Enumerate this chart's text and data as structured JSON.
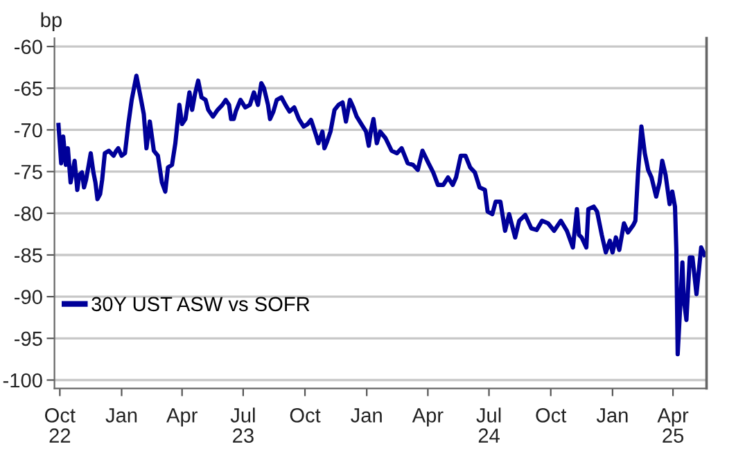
{
  "chart_data": {
    "type": "line",
    "ylabel": "bp",
    "xlim": [
      "2022-09-23",
      "2025-05-21"
    ],
    "xticks": [
      {
        "value": "2022-10-01",
        "label": "Oct\n22"
      },
      {
        "value": "2023-01-01",
        "label": "Jan"
      },
      {
        "value": "2023-04-01",
        "label": "Apr"
      },
      {
        "value": "2023-07-01",
        "label": "Jul\n23"
      },
      {
        "value": "2023-10-01",
        "label": "Oct"
      },
      {
        "value": "2024-01-01",
        "label": "Jan"
      },
      {
        "value": "2024-04-01",
        "label": "Apr"
      },
      {
        "value": "2024-07-01",
        "label": "Jul\n24"
      },
      {
        "value": "2024-10-01",
        "label": "Oct"
      },
      {
        "value": "2025-01-01",
        "label": "Jan"
      },
      {
        "value": "2025-04-01",
        "label": "Apr\n25"
      }
    ],
    "ylim": [
      -101,
      -59
    ],
    "yticks": [
      -60,
      -65,
      -70,
      -75,
      -80,
      -85,
      -90,
      -95,
      -100
    ],
    "grid": "y",
    "legend": "bottom left",
    "line_style": "solid",
    "marker": "none",
    "series": [
      {
        "name": "30Y UST ASW vs SOFR",
        "color": "#000099",
        "x": [
          "2022-09-29",
          "2022-10-03",
          "2022-10-06",
          "2022-10-10",
          "2022-10-13",
          "2022-10-17",
          "2022-10-20",
          "2022-10-23",
          "2022-10-27",
          "2022-10-30",
          "2022-11-03",
          "2022-11-06",
          "2022-11-09",
          "2022-11-13",
          "2022-11-16",
          "2022-11-20",
          "2022-11-23",
          "2022-11-26",
          "2022-11-30",
          "2022-12-03",
          "2022-12-07",
          "2022-12-13",
          "2022-12-20",
          "2022-12-24",
          "2022-12-27",
          "2023-01-01",
          "2023-01-06",
          "2023-01-11",
          "2023-01-16",
          "2023-01-23",
          "2023-01-30",
          "2023-02-03",
          "2023-02-07",
          "2023-02-12",
          "2023-02-18",
          "2023-02-24",
          "2023-03-02",
          "2023-03-07",
          "2023-03-11",
          "2023-03-17",
          "2023-03-22",
          "2023-03-28",
          "2023-04-01",
          "2023-04-06",
          "2023-04-12",
          "2023-04-16",
          "2023-04-20",
          "2023-04-25",
          "2023-04-30",
          "2023-05-06",
          "2023-05-10",
          "2023-05-17",
          "2023-05-24",
          "2023-05-31",
          "2023-06-05",
          "2023-06-10",
          "2023-06-13",
          "2023-06-17",
          "2023-06-20",
          "2023-06-27",
          "2023-07-04",
          "2023-07-11",
          "2023-07-17",
          "2023-07-23",
          "2023-07-28",
          "2023-08-01",
          "2023-08-07",
          "2023-08-10",
          "2023-08-15",
          "2023-08-20",
          "2023-08-27",
          "2023-09-02",
          "2023-09-08",
          "2023-09-15",
          "2023-09-22",
          "2023-09-29",
          "2023-10-05",
          "2023-10-10",
          "2023-10-17",
          "2023-10-21",
          "2023-10-27",
          "2023-10-30",
          "2023-11-03",
          "2023-11-08",
          "2023-11-14",
          "2023-11-20",
          "2023-11-26",
          "2023-12-01",
          "2023-12-07",
          "2023-12-12",
          "2023-12-17",
          "2023-12-24",
          "2023-12-31",
          "2024-01-04",
          "2024-01-07",
          "2024-01-11",
          "2024-01-16",
          "2024-01-21",
          "2024-01-29",
          "2024-02-07",
          "2024-02-15",
          "2024-02-22",
          "2024-03-02",
          "2024-03-10",
          "2024-03-17",
          "2024-03-24",
          "2024-04-02",
          "2024-04-09",
          "2024-04-16",
          "2024-04-24",
          "2024-05-01",
          "2024-05-08",
          "2024-05-13",
          "2024-05-20",
          "2024-05-27",
          "2024-06-03",
          "2024-06-10",
          "2024-06-17",
          "2024-06-25",
          "2024-06-29",
          "2024-07-06",
          "2024-07-11",
          "2024-07-18",
          "2024-07-25",
          "2024-07-31",
          "2024-08-09",
          "2024-08-15",
          "2024-08-24",
          "2024-09-02",
          "2024-09-10",
          "2024-09-18",
          "2024-09-27",
          "2024-10-06",
          "2024-10-16",
          "2024-10-25",
          "2024-11-03",
          "2024-11-09",
          "2024-11-12",
          "2024-11-16",
          "2024-11-23",
          "2024-11-26",
          "2024-12-04",
          "2024-12-09",
          "2024-12-16",
          "2024-12-22",
          "2024-12-28",
          "2025-01-01",
          "2025-01-06",
          "2025-01-11",
          "2025-01-18",
          "2025-01-24",
          "2025-02-01",
          "2025-02-04",
          "2025-02-08",
          "2025-02-13",
          "2025-02-18",
          "2025-02-23",
          "2025-02-28",
          "2025-03-07",
          "2025-03-12",
          "2025-03-16",
          "2025-03-21",
          "2025-03-27",
          "2025-03-31",
          "2025-04-04",
          "2025-04-06",
          "2025-04-08",
          "2025-04-12",
          "2025-04-15",
          "2025-04-17",
          "2025-04-21",
          "2025-04-26",
          "2025-04-30",
          "2025-05-06",
          "2025-05-13",
          "2025-05-18"
        ],
        "values": [
          -69.4,
          -74,
          -70.8,
          -74.2,
          -72.2,
          -76.3,
          -75.1,
          -73.7,
          -77.2,
          -75.4,
          -75.1,
          -76.9,
          -76,
          -74.2,
          -72.8,
          -75.1,
          -76.3,
          -78.3,
          -77.7,
          -76,
          -72.8,
          -72.5,
          -73.1,
          -72.5,
          -72.2,
          -73.1,
          -72.8,
          -69.3,
          -66.4,
          -63.5,
          -66.4,
          -68.1,
          -72.2,
          -69,
          -72.5,
          -73.1,
          -76.3,
          -77.4,
          -74.5,
          -74.2,
          -71.6,
          -67,
          -69.3,
          -68.7,
          -65.5,
          -67.6,
          -65.8,
          -64.1,
          -66.1,
          -66.4,
          -67.6,
          -68.4,
          -67.6,
          -67,
          -66.4,
          -67,
          -68.7,
          -68.7,
          -67.8,
          -66.4,
          -67.3,
          -67,
          -65.5,
          -67,
          -64.4,
          -65,
          -67,
          -68.7,
          -67.8,
          -66.4,
          -66.1,
          -67,
          -67.8,
          -67.3,
          -68.7,
          -69.6,
          -69.3,
          -68.8,
          -70.5,
          -71.6,
          -70.2,
          -72.2,
          -71.4,
          -70.2,
          -67.6,
          -67,
          -66.7,
          -69,
          -66.4,
          -67.3,
          -68.4,
          -69.3,
          -70.2,
          -71.9,
          -70.2,
          -68.7,
          -71.6,
          -70.2,
          -71,
          -72.5,
          -72.8,
          -72.2,
          -74,
          -74.2,
          -74.8,
          -72.5,
          -74,
          -75.1,
          -76.6,
          -76.6,
          -75.7,
          -76.6,
          -75.7,
          -73.1,
          -73.1,
          -74.5,
          -75.1,
          -76.9,
          -77.2,
          -79.8,
          -80.1,
          -78.6,
          -78.6,
          -82.1,
          -80.1,
          -82.9,
          -80.9,
          -80.2,
          -81.8,
          -82,
          -80.9,
          -81.2,
          -82.1,
          -80.9,
          -82.1,
          -84.1,
          -79.5,
          -82.6,
          -82.9,
          -84.1,
          -79.5,
          -79.2,
          -79.8,
          -82.6,
          -84.7,
          -83.3,
          -84.7,
          -82.9,
          -84.4,
          -81.2,
          -82.3,
          -81.4,
          -80.9,
          -75.1,
          -69.6,
          -72.8,
          -74.8,
          -75.7,
          -78,
          -76.3,
          -73.7,
          -75.4,
          -78.9,
          -77.4,
          -79.2,
          -84.4,
          -96.9,
          -90.8,
          -85.9,
          -90.2,
          -92.8,
          -85.3,
          -85.3,
          -89.7,
          -84.1,
          -85
        ]
      }
    ]
  }
}
